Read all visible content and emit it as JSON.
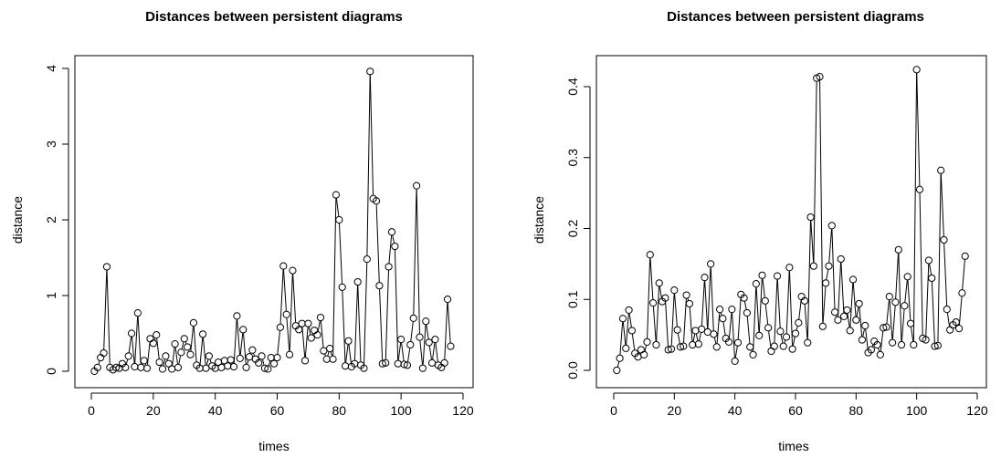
{
  "chart_data": [
    {
      "type": "line",
      "title": "Distances between persistent diagrams",
      "xlabel": "times",
      "ylabel": "distance",
      "xlim": [
        0,
        120
      ],
      "ylim": [
        0,
        4
      ],
      "xticks": [
        0,
        20,
        40,
        60,
        80,
        100,
        120
      ],
      "yticks": [
        0,
        1,
        2,
        3,
        4
      ],
      "x": [
        1,
        2,
        3,
        4,
        5,
        6,
        7,
        8,
        9,
        10,
        11,
        12,
        13,
        14,
        15,
        16,
        17,
        18,
        19,
        20,
        21,
        22,
        23,
        24,
        25,
        26,
        27,
        28,
        29,
        30,
        31,
        32,
        33,
        34,
        35,
        36,
        37,
        38,
        39,
        40,
        41,
        42,
        43,
        44,
        45,
        46,
        47,
        48,
        49,
        50,
        51,
        52,
        53,
        54,
        55,
        56,
        57,
        58,
        59,
        60,
        61,
        62,
        63,
        64,
        65,
        66,
        67,
        68,
        69,
        70,
        71,
        72,
        73,
        74,
        75,
        76,
        77,
        78,
        79,
        80,
        81,
        82,
        83,
        84,
        85,
        86,
        87,
        88,
        89,
        90,
        91,
        92,
        93,
        94,
        95,
        96,
        97,
        98,
        99,
        100,
        101,
        102,
        103,
        104,
        105,
        106,
        107,
        108,
        109,
        110,
        111,
        112,
        113,
        114,
        115,
        116
      ],
      "values": [
        0.0,
        0.05,
        0.18,
        0.24,
        1.38,
        0.05,
        0.02,
        0.05,
        0.04,
        0.1,
        0.05,
        0.2,
        0.5,
        0.06,
        0.77,
        0.05,
        0.14,
        0.04,
        0.43,
        0.37,
        0.48,
        0.12,
        0.03,
        0.2,
        0.1,
        0.03,
        0.36,
        0.05,
        0.25,
        0.43,
        0.32,
        0.22,
        0.64,
        0.08,
        0.04,
        0.49,
        0.04,
        0.2,
        0.07,
        0.04,
        0.12,
        0.05,
        0.14,
        0.07,
        0.15,
        0.06,
        0.73,
        0.17,
        0.55,
        0.05,
        0.19,
        0.28,
        0.16,
        0.11,
        0.2,
        0.04,
        0.03,
        0.18,
        0.1,
        0.18,
        0.58,
        1.39,
        0.75,
        0.22,
        1.33,
        0.6,
        0.55,
        0.63,
        0.14,
        0.63,
        0.44,
        0.54,
        0.48,
        0.71,
        0.27,
        0.16,
        0.3,
        0.16,
        2.33,
        2.0,
        1.11,
        0.07,
        0.4,
        0.06,
        0.1,
        1.18,
        0.08,
        0.04,
        1.48,
        3.96,
        2.28,
        2.25,
        1.13,
        0.1,
        0.11,
        1.38,
        1.84,
        1.65,
        0.1,
        0.42,
        0.09,
        0.08,
        0.35,
        0.7,
        2.45,
        0.45,
        0.04,
        0.66,
        0.38,
        0.11,
        0.42,
        0.08,
        0.05,
        0.11,
        0.95,
        0.33
      ]
    },
    {
      "type": "line",
      "title": "Distances between persistent diagrams",
      "xlabel": "times",
      "ylabel": "distance",
      "xlim": [
        0,
        120
      ],
      "ylim": [
        0,
        0.4
      ],
      "xticks": [
        0,
        20,
        40,
        60,
        80,
        100,
        120
      ],
      "yticks": [
        "0.0",
        "0.1",
        "0.2",
        "0.3",
        "0.4"
      ],
      "x": [
        1,
        2,
        3,
        4,
        5,
        6,
        7,
        8,
        9,
        10,
        11,
        12,
        13,
        14,
        15,
        16,
        17,
        18,
        19,
        20,
        21,
        22,
        23,
        24,
        25,
        26,
        27,
        28,
        29,
        30,
        31,
        32,
        33,
        34,
        35,
        36,
        37,
        38,
        39,
        40,
        41,
        42,
        43,
        44,
        45,
        46,
        47,
        48,
        49,
        50,
        51,
        52,
        53,
        54,
        55,
        56,
        57,
        58,
        59,
        60,
        61,
        62,
        63,
        64,
        65,
        66,
        67,
        68,
        69,
        70,
        71,
        72,
        73,
        74,
        75,
        76,
        77,
        78,
        79,
        80,
        81,
        82,
        83,
        84,
        85,
        86,
        87,
        88,
        89,
        90,
        91,
        92,
        93,
        94,
        95,
        96,
        97,
        98,
        99,
        100,
        101,
        102,
        103,
        104,
        105,
        106,
        107,
        108,
        109,
        110,
        111,
        112,
        113,
        114,
        115,
        116
      ],
      "values": [
        0.0,
        0.017,
        0.073,
        0.031,
        0.085,
        0.056,
        0.024,
        0.019,
        0.029,
        0.022,
        0.04,
        0.163,
        0.095,
        0.036,
        0.123,
        0.097,
        0.102,
        0.029,
        0.03,
        0.113,
        0.057,
        0.033,
        0.034,
        0.106,
        0.094,
        0.036,
        0.056,
        0.037,
        0.058,
        0.131,
        0.054,
        0.15,
        0.051,
        0.033,
        0.086,
        0.073,
        0.045,
        0.04,
        0.086,
        0.013,
        0.039,
        0.107,
        0.102,
        0.081,
        0.033,
        0.022,
        0.122,
        0.049,
        0.134,
        0.098,
        0.06,
        0.027,
        0.034,
        0.133,
        0.055,
        0.034,
        0.047,
        0.145,
        0.03,
        0.052,
        0.067,
        0.104,
        0.098,
        0.039,
        0.216,
        0.147,
        0.412,
        0.414,
        0.062,
        0.123,
        0.147,
        0.204,
        0.082,
        0.071,
        0.157,
        0.076,
        0.085,
        0.056,
        0.128,
        0.071,
        0.094,
        0.043,
        0.063,
        0.025,
        0.029,
        0.041,
        0.036,
        0.022,
        0.06,
        0.061,
        0.104,
        0.039,
        0.096,
        0.17,
        0.036,
        0.091,
        0.132,
        0.066,
        0.036,
        0.424,
        0.255,
        0.045,
        0.043,
        0.155,
        0.13,
        0.034,
        0.035,
        0.282,
        0.184,
        0.086,
        0.057,
        0.064,
        0.068,
        0.059,
        0.109,
        0.161
      ]
    }
  ]
}
